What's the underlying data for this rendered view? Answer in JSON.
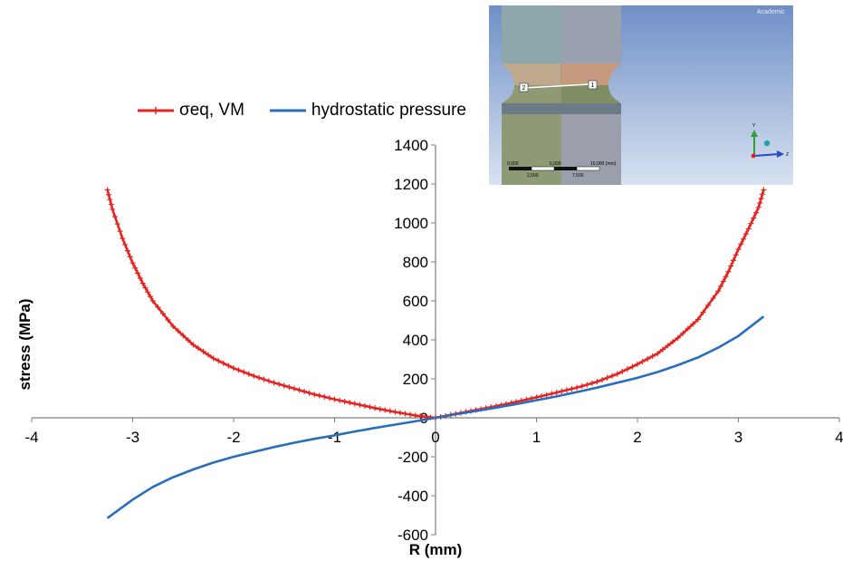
{
  "chart_data": {
    "type": "line",
    "title": "",
    "xlabel": "R (mm)",
    "ylabel": "stress (MPa)",
    "xlim": [
      -4,
      4
    ],
    "ylim": [
      -600,
      1400
    ],
    "x_ticks": [
      "-4",
      "-3",
      "-2",
      "-1",
      "0",
      "1",
      "2",
      "3",
      "4"
    ],
    "y_ticks": [
      "-600",
      "-400",
      "-200",
      "0",
      "200",
      "400",
      "600",
      "800",
      "1000",
      "1200",
      "1400"
    ],
    "legend_position": "top-left",
    "series": [
      {
        "name": "σeq, VM",
        "color": "#e52421",
        "marker": "plus",
        "x": [
          -3.25,
          -3.2,
          -3.1,
          -3.0,
          -2.9,
          -2.8,
          -2.6,
          -2.4,
          -2.2,
          -2.0,
          -1.8,
          -1.6,
          -1.4,
          -1.2,
          -1.0,
          -0.8,
          -0.6,
          -0.4,
          -0.2,
          0.0,
          0.2,
          0.4,
          0.6,
          0.8,
          1.0,
          1.2,
          1.4,
          1.6,
          1.8,
          2.0,
          2.2,
          2.4,
          2.6,
          2.8,
          2.9,
          3.0,
          3.1,
          3.2,
          3.25
        ],
        "y": [
          1170,
          1070,
          920,
          795,
          690,
          600,
          470,
          375,
          305,
          255,
          215,
          180,
          150,
          120,
          95,
          72,
          50,
          30,
          12,
          0,
          20,
          40,
          60,
          82,
          105,
          130,
          155,
          185,
          225,
          275,
          330,
          410,
          505,
          650,
          750,
          865,
          970,
          1080,
          1170
        ]
      },
      {
        "name": "hydrostatic pressure",
        "color": "#2a6ebb",
        "marker": "none",
        "x": [
          -3.25,
          -3.0,
          -2.8,
          -2.6,
          -2.4,
          -2.2,
          -2.0,
          -1.8,
          -1.6,
          -1.4,
          -1.2,
          -1.0,
          -0.8,
          -0.6,
          -0.4,
          -0.2,
          0.0,
          0.2,
          0.4,
          0.6,
          0.8,
          1.0,
          1.2,
          1.4,
          1.6,
          1.8,
          2.0,
          2.2,
          2.4,
          2.6,
          2.8,
          3.0,
          3.25
        ],
        "y": [
          -515,
          -420,
          -355,
          -305,
          -265,
          -230,
          -200,
          -175,
          -150,
          -128,
          -108,
          -90,
          -70,
          -52,
          -35,
          -18,
          0,
          18,
          35,
          52,
          70,
          90,
          110,
          132,
          155,
          180,
          205,
          235,
          270,
          310,
          360,
          420,
          520
        ]
      }
    ]
  },
  "inset": {
    "watermark": "Academic",
    "probe_labels": [
      "2",
      "1"
    ],
    "scale_top": [
      "0,000",
      "5,000",
      "10,000 (mm)"
    ],
    "scale_bottom": [
      "2,500",
      "7,500"
    ],
    "axis_labels": [
      "Y",
      "Z"
    ]
  }
}
